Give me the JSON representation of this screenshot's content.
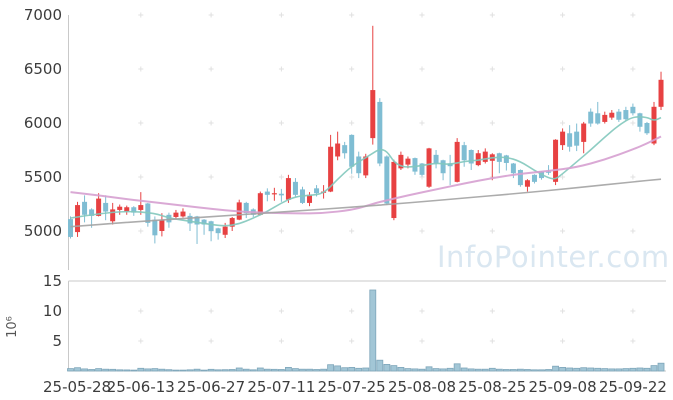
{
  "watermark": {
    "text": "InfoPointer.com"
  },
  "chart_data": {
    "type": "candlestick",
    "title": "",
    "subtitle": "",
    "legend": [],
    "grid": "plus-marks",
    "price_axis": {
      "ticks": [
        7000,
        6500,
        6000,
        5500,
        5000
      ],
      "min": 4650,
      "max": 7000
    },
    "volume_axis": {
      "ticks": [
        15,
        10,
        5
      ],
      "max": 15,
      "unit_label": "10⁶",
      "unit_meaning": "millions of shares"
    },
    "x_ticks": [
      "25-05-28",
      "25-06-13",
      "25-06-27",
      "25-07-11",
      "25-07-25",
      "25-08-08",
      "25-08-25",
      "25-09-08",
      "25-09-22"
    ],
    "colors": {
      "up": "#e74142",
      "down": "#7fbdd3",
      "volume_fill": "#a2c6d6",
      "volume_stroke": "#7ea6ba",
      "ma_short": "#82c8bd",
      "ma_mid": "#d6a0d0",
      "ma_long": "#a3a3a3",
      "axis_line": "#c9c9c9",
      "grid_mark": "#e0e0e0",
      "tick_text": "#3c3c3c",
      "watermark": "#dae7f1"
    },
    "candles_format": [
      "date",
      "open",
      "high",
      "low",
      "close",
      "volume_millions"
    ],
    "candles": [
      [
        "25-05-28",
        5110,
        5135,
        4930,
        4945,
        0.4
      ],
      [
        "25-05-29",
        4990,
        5270,
        4945,
        5240,
        0.55
      ],
      [
        "25-05-30",
        5270,
        5330,
        5080,
        5150,
        0.35
      ],
      [
        "25-06-02",
        5200,
        5210,
        5030,
        5140,
        0.25
      ],
      [
        "25-06-04",
        5140,
        5350,
        5135,
        5300,
        0.4
      ],
      [
        "25-06-05",
        5260,
        5330,
        5100,
        5180,
        0.3
      ],
      [
        "25-06-09",
        5090,
        5260,
        5060,
        5200,
        0.28
      ],
      [
        "25-06-10",
        5195,
        5245,
        5150,
        5225,
        0.2
      ],
      [
        "25-06-11",
        5180,
        5235,
        5150,
        5220,
        0.18
      ],
      [
        "25-06-12",
        5220,
        5230,
        5140,
        5170,
        0.15
      ],
      [
        "25-06-13",
        5195,
        5360,
        5150,
        5240,
        0.45
      ],
      [
        "25-06-16",
        5255,
        5260,
        5040,
        5075,
        0.35
      ],
      [
        "25-06-17",
        5105,
        5135,
        4885,
        4960,
        0.4
      ],
      [
        "25-06-18",
        5000,
        5165,
        4950,
        5100,
        0.3
      ],
      [
        "25-06-19",
        5150,
        5170,
        5030,
        5080,
        0.22
      ],
      [
        "25-06-20",
        5130,
        5195,
        5115,
        5170,
        0.15
      ],
      [
        "25-06-23",
        5135,
        5210,
        5125,
        5180,
        0.15
      ],
      [
        "25-06-24",
        5140,
        5165,
        5000,
        5070,
        0.2
      ],
      [
        "25-06-25",
        5135,
        5140,
        4880,
        5060,
        0.3
      ],
      [
        "25-06-26",
        5105,
        5110,
        4965,
        5060,
        0.15
      ],
      [
        "25-06-27",
        5090,
        5095,
        4905,
        5000,
        0.28
      ],
      [
        "25-06-30",
        5025,
        5030,
        4920,
        4980,
        0.2
      ],
      [
        "25-07-01",
        4965,
        5075,
        4935,
        5040,
        0.22
      ],
      [
        "25-07-02",
        5040,
        5130,
        5000,
        5120,
        0.25
      ],
      [
        "25-07-03",
        5105,
        5290,
        5100,
        5265,
        0.5
      ],
      [
        "25-07-04",
        5260,
        5270,
        5120,
        5165,
        0.3
      ],
      [
        "25-07-07",
        5200,
        5210,
        5130,
        5150,
        0.2
      ],
      [
        "25-07-08",
        5150,
        5365,
        5145,
        5350,
        0.5
      ],
      [
        "25-07-09",
        5365,
        5395,
        5275,
        5335,
        0.3
      ],
      [
        "25-07-10",
        5340,
        5400,
        5280,
        5350,
        0.28
      ],
      [
        "25-07-11",
        5345,
        5390,
        5270,
        5330,
        0.25
      ],
      [
        "25-07-14",
        5290,
        5520,
        5260,
        5490,
        0.6
      ],
      [
        "25-07-15",
        5455,
        5490,
        5320,
        5335,
        0.4
      ],
      [
        "25-07-16",
        5385,
        5410,
        5250,
        5260,
        0.3
      ],
      [
        "25-07-17",
        5260,
        5360,
        5230,
        5335,
        0.3
      ],
      [
        "25-07-18",
        5395,
        5425,
        5320,
        5350,
        0.25
      ],
      [
        "25-07-21",
        5360,
        5425,
        5300,
        5365,
        0.3
      ],
      [
        "25-07-22",
        5365,
        5890,
        5360,
        5780,
        1.05
      ],
      [
        "25-07-23",
        5690,
        5920,
        5655,
        5810,
        0.85
      ],
      [
        "25-07-24",
        5795,
        5825,
        5670,
        5720,
        0.55
      ],
      [
        "25-07-25",
        5890,
        5895,
        5530,
        5595,
        0.6
      ],
      [
        "25-07-28",
        5690,
        5735,
        5490,
        5535,
        0.45
      ],
      [
        "25-07-29",
        5515,
        5715,
        5490,
        5690,
        0.5
      ],
      [
        "25-07-30",
        5860,
        6900,
        5800,
        6305,
        13.5
      ],
      [
        "25-07-31",
        6195,
        6230,
        5600,
        5625,
        1.8
      ],
      [
        "25-08-01",
        5690,
        5700,
        5240,
        5255,
        1.1
      ],
      [
        "25-08-04",
        5120,
        5660,
        5100,
        5640,
        0.9
      ],
      [
        "25-08-05",
        5580,
        5735,
        5565,
        5705,
        0.6
      ],
      [
        "25-08-06",
        5615,
        5690,
        5580,
        5670,
        0.4
      ],
      [
        "25-08-07",
        5675,
        5680,
        5520,
        5550,
        0.35
      ],
      [
        "25-08-08",
        5625,
        5630,
        5505,
        5520,
        0.3
      ],
      [
        "25-08-11",
        5410,
        5770,
        5400,
        5765,
        0.7
      ],
      [
        "25-08-12",
        5705,
        5750,
        5580,
        5625,
        0.4
      ],
      [
        "25-08-13",
        5655,
        5660,
        5470,
        5535,
        0.35
      ],
      [
        "25-08-14",
        5625,
        5705,
        5425,
        5600,
        0.45
      ],
      [
        "25-08-18",
        5455,
        5860,
        5450,
        5825,
        1.2
      ],
      [
        "25-08-19",
        5795,
        5825,
        5595,
        5655,
        0.5
      ],
      [
        "25-08-20",
        5750,
        5755,
        5565,
        5625,
        0.35
      ],
      [
        "25-08-21",
        5610,
        5750,
        5600,
        5720,
        0.3
      ],
      [
        "25-08-22",
        5640,
        5765,
        5625,
        5735,
        0.3
      ],
      [
        "25-08-25",
        5650,
        5720,
        5470,
        5710,
        0.45
      ],
      [
        "25-08-26",
        5720,
        5725,
        5535,
        5640,
        0.3
      ],
      [
        "25-08-27",
        5700,
        5705,
        5560,
        5630,
        0.25
      ],
      [
        "25-08-28",
        5625,
        5630,
        5490,
        5535,
        0.25
      ],
      [
        "25-08-29",
        5565,
        5570,
        5410,
        5425,
        0.3
      ],
      [
        "25-09-01",
        5410,
        5480,
        5365,
        5470,
        0.25
      ],
      [
        "25-09-02",
        5520,
        5525,
        5440,
        5455,
        0.2
      ],
      [
        "25-09-03",
        5550,
        5555,
        5475,
        5490,
        0.2
      ],
      [
        "25-09-04",
        5550,
        5610,
        5520,
        5545,
        0.25
      ],
      [
        "25-09-05",
        5455,
        5850,
        5425,
        5845,
        0.8
      ],
      [
        "25-09-08",
        5795,
        5950,
        5750,
        5920,
        0.6
      ],
      [
        "25-09-09",
        5905,
        5980,
        5735,
        5780,
        0.5
      ],
      [
        "25-09-10",
        5920,
        5995,
        5740,
        5790,
        0.45
      ],
      [
        "25-09-11",
        5825,
        6010,
        5720,
        5995,
        0.55
      ],
      [
        "25-09-12",
        6105,
        6135,
        5965,
        5995,
        0.5
      ],
      [
        "25-09-15",
        6090,
        6195,
        5985,
        5995,
        0.45
      ],
      [
        "25-09-16",
        6010,
        6105,
        5995,
        6075,
        0.4
      ],
      [
        "25-09-17",
        6050,
        6120,
        6030,
        6095,
        0.35
      ],
      [
        "25-09-18",
        6105,
        6130,
        6010,
        6030,
        0.35
      ],
      [
        "25-09-19",
        6120,
        6150,
        6020,
        6035,
        0.4
      ],
      [
        "25-09-22",
        6150,
        6180,
        6070,
        6090,
        0.45
      ],
      [
        "25-09-23",
        6090,
        6095,
        5920,
        5965,
        0.5
      ],
      [
        "25-09-24",
        6000,
        6010,
        5890,
        5905,
        0.45
      ],
      [
        "25-09-25",
        5810,
        6195,
        5795,
        6150,
        0.9
      ],
      [
        "25-09-26",
        6150,
        6475,
        6120,
        6400,
        1.3
      ]
    ],
    "moving_averages": [
      {
        "name": "ma-short",
        "color": "#82c8bd",
        "points": [
          [
            0,
            5120
          ],
          [
            4,
            5160
          ],
          [
            8,
            5185
          ],
          [
            12,
            5165
          ],
          [
            14,
            5120
          ],
          [
            16,
            5100
          ],
          [
            18,
            5080
          ],
          [
            20,
            5060
          ],
          [
            22,
            5045
          ],
          [
            24,
            5065
          ],
          [
            26,
            5120
          ],
          [
            28,
            5180
          ],
          [
            30,
            5260
          ],
          [
            32,
            5320
          ],
          [
            34,
            5330
          ],
          [
            36,
            5345
          ],
          [
            38,
            5480
          ],
          [
            40,
            5600
          ],
          [
            42,
            5680
          ],
          [
            43,
            5720
          ],
          [
            44,
            5760
          ],
          [
            45,
            5740
          ],
          [
            46,
            5640
          ],
          [
            47,
            5600
          ],
          [
            48,
            5590
          ],
          [
            50,
            5605
          ],
          [
            52,
            5630
          ],
          [
            54,
            5615
          ],
          [
            56,
            5645
          ],
          [
            58,
            5655
          ],
          [
            60,
            5680
          ],
          [
            62,
            5685
          ],
          [
            64,
            5645
          ],
          [
            66,
            5560
          ],
          [
            68,
            5490
          ],
          [
            69,
            5480
          ],
          [
            70,
            5530
          ],
          [
            72,
            5640
          ],
          [
            74,
            5750
          ],
          [
            76,
            5870
          ],
          [
            78,
            5980
          ],
          [
            80,
            6060
          ],
          [
            82,
            6055
          ],
          [
            83,
            6020
          ],
          [
            84,
            6050
          ]
        ]
      },
      {
        "name": "ma-mid",
        "color": "#d6a0d0",
        "points": [
          [
            0,
            5360
          ],
          [
            4,
            5330
          ],
          [
            8,
            5295
          ],
          [
            12,
            5265
          ],
          [
            16,
            5235
          ],
          [
            20,
            5205
          ],
          [
            24,
            5180
          ],
          [
            28,
            5168
          ],
          [
            32,
            5162
          ],
          [
            36,
            5165
          ],
          [
            40,
            5195
          ],
          [
            42,
            5230
          ],
          [
            44,
            5270
          ],
          [
            48,
            5330
          ],
          [
            52,
            5385
          ],
          [
            56,
            5440
          ],
          [
            60,
            5490
          ],
          [
            64,
            5530
          ],
          [
            68,
            5555
          ],
          [
            72,
            5590
          ],
          [
            76,
            5660
          ],
          [
            80,
            5755
          ],
          [
            82,
            5810
          ],
          [
            84,
            5875
          ]
        ]
      },
      {
        "name": "ma-long",
        "color": "#a3a3a3",
        "points": [
          [
            0,
            5040
          ],
          [
            8,
            5080
          ],
          [
            16,
            5115
          ],
          [
            24,
            5150
          ],
          [
            32,
            5185
          ],
          [
            40,
            5220
          ],
          [
            48,
            5260
          ],
          [
            56,
            5305
          ],
          [
            64,
            5350
          ],
          [
            72,
            5400
          ],
          [
            80,
            5455
          ],
          [
            84,
            5480
          ]
        ]
      }
    ]
  }
}
